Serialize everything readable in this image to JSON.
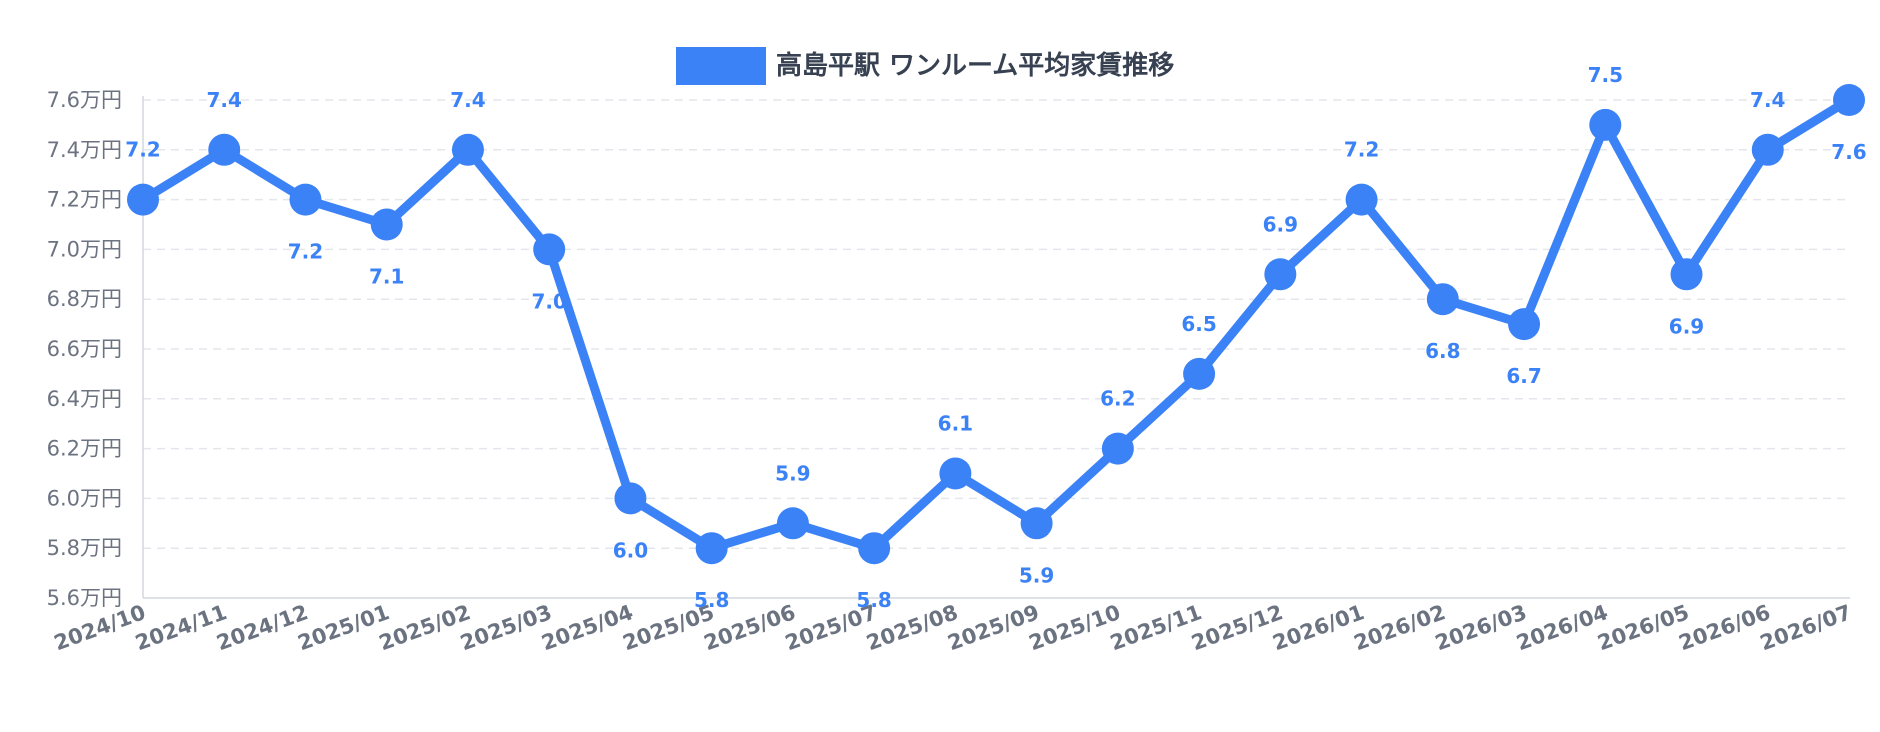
{
  "chart_data": {
    "type": "line",
    "title": "",
    "categories": [
      "2024/10",
      "2024/11",
      "2024/12",
      "2025/01",
      "2025/02",
      "2025/03",
      "2025/04",
      "2025/05",
      "2025/06",
      "2025/07",
      "2025/08",
      "2025/09",
      "2025/10",
      "2025/11",
      "2025/12",
      "2026/01",
      "2026/02",
      "2026/03",
      "2026/04",
      "2026/05",
      "2026/06",
      "2026/07"
    ],
    "series": [
      {
        "name": "高島平駅 ワンルーム平均家賃推移",
        "values": [
          7.2,
          7.4,
          7.2,
          7.1,
          7.4,
          7.0,
          6.0,
          5.8,
          5.9,
          5.8,
          6.1,
          5.9,
          6.2,
          6.5,
          6.9,
          7.2,
          6.8,
          6.7,
          7.5,
          6.9,
          7.4,
          7.6
        ],
        "data_labels": [
          "7.2",
          "7.4",
          "7.2",
          "7.1",
          "7.4",
          "7.0",
          "6.0",
          "5.8",
          "5.9",
          "5.8",
          "6.1",
          "5.9",
          "6.2",
          "6.5",
          "6.9",
          "7.2",
          "6.8",
          "6.7",
          "7.5",
          "6.9",
          "7.4",
          "7.6"
        ],
        "color": "#3b82f6"
      }
    ],
    "yticks": [
      "5.6万円",
      "5.8万円",
      "6.0万円",
      "6.2万円",
      "6.4万円",
      "6.6万円",
      "6.8万円",
      "7.0万円",
      "7.2万円",
      "7.4万円",
      "7.6万円"
    ],
    "ylim": [
      5.6,
      7.6
    ],
    "ytick_step": 0.2,
    "xlabel": "",
    "ylabel": "",
    "grid": true,
    "legend_position": "top-center",
    "colors": {
      "series": "#3b82f6",
      "grid": "#e3e6ea",
      "tick_text": "#6b7280",
      "legend_text": "#374151"
    }
  }
}
